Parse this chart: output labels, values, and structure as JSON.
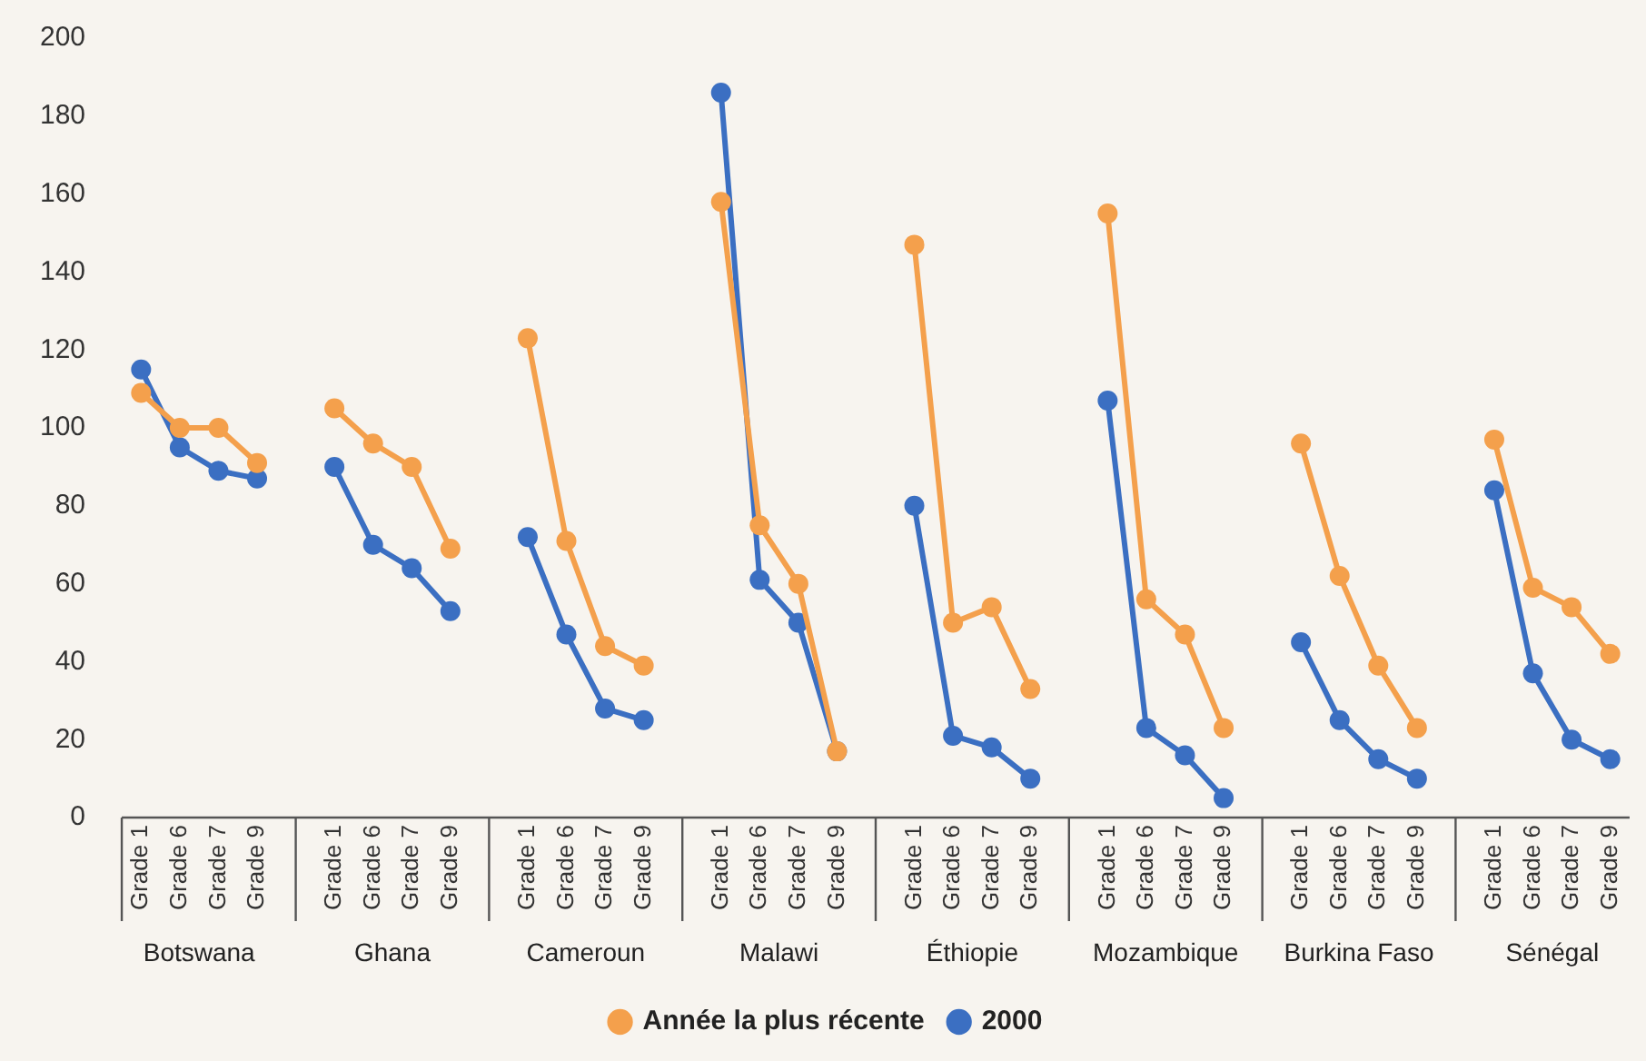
{
  "chart_data": {
    "type": "line",
    "categories": [
      "Grade 1",
      "Grade 6",
      "Grade 7",
      "Grade 9",
      null,
      "Grade 1",
      "Grade 6",
      "Grade 7",
      "Grade 9",
      null,
      "Grade 1",
      "Grade 6",
      "Grade 7",
      "Grade 9",
      null,
      "Grade 1",
      "Grade 6",
      "Grade 7",
      "Grade 9",
      null,
      "Grade 1",
      "Grade 6",
      "Grade 7",
      "Grade 9",
      null,
      "Grade 1",
      "Grade 6",
      "Grade 7",
      "Grade 9",
      null,
      "Grade 1",
      "Grade 6",
      "Grade 7",
      "Grade 9",
      null,
      "Grade 1",
      "Grade 6",
      "Grade 7",
      "Grade 9"
    ],
    "series": [
      {
        "name": "2000",
        "color": "#3b6fc2",
        "values": [
          115,
          95,
          89,
          87,
          null,
          90,
          70,
          64,
          53,
          null,
          72,
          47,
          28,
          25,
          null,
          186,
          61,
          50,
          17,
          null,
          80,
          21,
          18,
          10,
          null,
          107,
          23,
          16,
          5,
          null,
          45,
          25,
          15,
          10,
          null,
          84,
          37,
          20,
          15
        ]
      },
      {
        "name": "Année la plus récente",
        "color": "#f4a04c",
        "values": [
          109,
          100,
          100,
          91,
          null,
          105,
          96,
          90,
          69,
          null,
          123,
          71,
          44,
          39,
          null,
          158,
          75,
          60,
          17,
          null,
          147,
          50,
          54,
          33,
          null,
          155,
          56,
          47,
          23,
          null,
          96,
          62,
          39,
          23,
          null,
          97,
          59,
          54,
          42
        ]
      }
    ],
    "annotations": [
      "Botswana",
      "Ghana",
      "Cameroun",
      "Malawi",
      "Éthiopie",
      "Mozambique",
      "Burkina Faso",
      "Sénégal"
    ],
    "ylim": [
      0,
      200
    ],
    "yticks": [
      0,
      20,
      40,
      60,
      80,
      100,
      120,
      140,
      160,
      180,
      200
    ],
    "grid": false,
    "legend": "bottom",
    "marker": "circle",
    "line_style": "solid"
  }
}
